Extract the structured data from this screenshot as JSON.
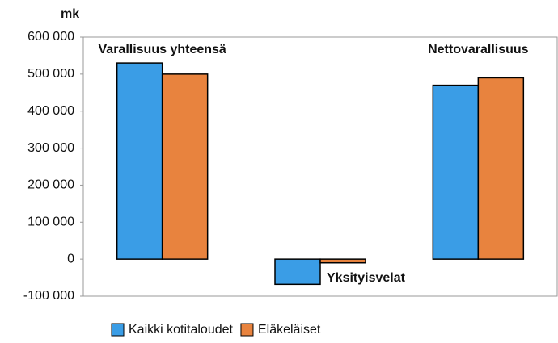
{
  "chart_data": {
    "type": "bar",
    "y_label": "mk",
    "categories": [
      "Varallisuus yhteensä",
      "Yksityisvelat",
      "Nettovarallisuus"
    ],
    "series": [
      {
        "name": "Kaikki kotitaloudet",
        "color": "#3a9de6",
        "values": [
          530000,
          -68000,
          470000
        ]
      },
      {
        "name": "Eläkeläiset",
        "color": "#e8833e",
        "values": [
          500000,
          -10000,
          490000
        ]
      }
    ],
    "ylim": [
      -100000,
      600000
    ],
    "yticks": [
      {
        "value": -100000,
        "label": "-100 000"
      },
      0,
      {
        "value": 100000,
        "label": "100 000"
      },
      {
        "value": 200000,
        "label": "200 000"
      },
      {
        "value": 300000,
        "label": "300 000"
      },
      {
        "value": 400000,
        "label": "400 000"
      },
      {
        "value": 500000,
        "label": "500 000"
      },
      {
        "value": 600000,
        "label": "600 000"
      }
    ],
    "grid": false
  }
}
